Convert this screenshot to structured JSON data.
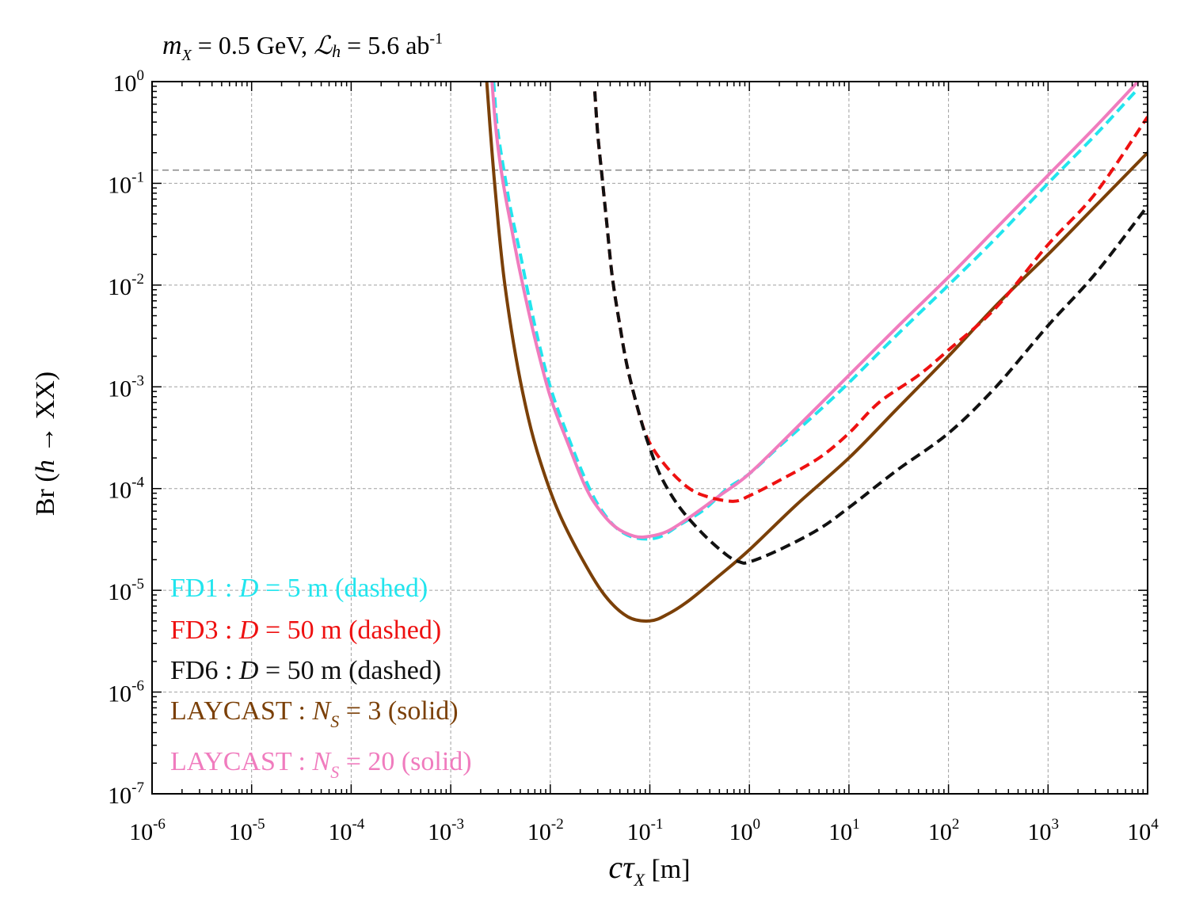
{
  "chart_data": {
    "type": "line",
    "title": {
      "mx_symbol": "m",
      "mx_sub": "X",
      "mass": " = 0.5 GeV, ",
      "lumi_symbol": "ℒ",
      "lumi_sub": "h",
      "lumi": " = 5.6 ab",
      "lumi_exp": "-1"
    },
    "xlabel": {
      "c": "c",
      "tau": "τ",
      "sub": "X",
      "unit": " [m]"
    },
    "ylabel": {
      "prefix": "Br (",
      "h": "h",
      "rest": " → XX)"
    },
    "x_scale": "log",
    "y_scale": "log",
    "xlim": [
      1e-06,
      10000.0
    ],
    "ylim": [
      1e-07,
      1
    ],
    "grid": true,
    "x_ticks": [
      {
        "base": "10",
        "exp": "-6"
      },
      {
        "base": "10",
        "exp": "-5"
      },
      {
        "base": "10",
        "exp": "-4"
      },
      {
        "base": "10",
        "exp": "-3"
      },
      {
        "base": "10",
        "exp": "-2"
      },
      {
        "base": "10",
        "exp": "-1"
      },
      {
        "base": "10",
        "exp": "0"
      },
      {
        "base": "10",
        "exp": "1"
      },
      {
        "base": "10",
        "exp": "2"
      },
      {
        "base": "10",
        "exp": "3"
      },
      {
        "base": "10",
        "exp": "4"
      }
    ],
    "y_ticks": [
      {
        "base": "10",
        "exp": "-7"
      },
      {
        "base": "10",
        "exp": "-6"
      },
      {
        "base": "10",
        "exp": "-5"
      },
      {
        "base": "10",
        "exp": "-4"
      },
      {
        "base": "10",
        "exp": "-3"
      },
      {
        "base": "10",
        "exp": "-2"
      },
      {
        "base": "10",
        "exp": "-1"
      },
      {
        "base": "10",
        "exp": "0"
      }
    ],
    "reference_line": {
      "y": 0.135,
      "color": "#888888",
      "style": "dashed"
    },
    "legend_placement": "bottom-left",
    "series": [
      {
        "name": "FD1 : D = 5 m (dashed)",
        "label_parts": [
          "FD1 : ",
          "D",
          " = 5 m (dashed)"
        ],
        "color": "#22e5ee",
        "style": "dashed",
        "points": [
          [
            0.0027,
            1
          ],
          [
            0.0029,
            0.4
          ],
          [
            0.0032,
            0.2
          ],
          [
            0.0036,
            0.1
          ],
          [
            0.004,
            0.055
          ],
          [
            0.005,
            0.02
          ],
          [
            0.007,
            0.004
          ],
          [
            0.01,
            0.001
          ],
          [
            0.015,
            0.00033
          ],
          [
            0.022,
            0.00013
          ],
          [
            0.03,
            7e-05
          ],
          [
            0.045,
            4.2e-05
          ],
          [
            0.07,
            3.3e-05
          ],
          [
            0.12,
            3.3e-05
          ],
          [
            0.2,
            4.4e-05
          ],
          [
            0.35,
            6.2e-05
          ],
          [
            0.6,
            0.0001
          ],
          [
            1,
            0.00014
          ],
          [
            2,
            0.00026
          ],
          [
            5,
            0.00058
          ],
          [
            10,
            0.0011
          ],
          [
            30,
            0.0032
          ],
          [
            100,
            0.01
          ],
          [
            300,
            0.029
          ],
          [
            1000,
            0.1
          ],
          [
            3000,
            0.3
          ],
          [
            8000,
            0.85
          ]
        ]
      },
      {
        "name": "FD3 : D = 50 m (dashed)",
        "label_parts": [
          "FD3 : ",
          "D",
          " = 50 m (dashed)"
        ],
        "color": "#ee1111",
        "style": "dashed",
        "points": [
          [
            0.028,
            0.8
          ],
          [
            0.03,
            0.3
          ],
          [
            0.033,
            0.12
          ],
          [
            0.037,
            0.04
          ],
          [
            0.042,
            0.012
          ],
          [
            0.05,
            0.004
          ],
          [
            0.06,
            0.0015
          ],
          [
            0.08,
            0.0005
          ],
          [
            0.1,
            0.00028
          ],
          [
            0.15,
            0.00016
          ],
          [
            0.25,
            0.0001
          ],
          [
            0.4,
            8.2e-05
          ],
          [
            0.7,
            7.5e-05
          ],
          [
            1,
            8.5e-05
          ],
          [
            2,
            0.00012
          ],
          [
            5,
            0.0002
          ],
          [
            10,
            0.00035
          ],
          [
            20,
            0.0007
          ],
          [
            50,
            0.0013
          ],
          [
            100,
            0.0023
          ],
          [
            300,
            0.006
          ],
          [
            1000,
            0.025
          ],
          [
            3000,
            0.08
          ],
          [
            10000,
            0.45
          ]
        ]
      },
      {
        "name": "FD6 : D = 50 m (dashed)",
        "label_parts": [
          "FD6 : ",
          "D",
          " = 50 m (dashed)"
        ],
        "color": "#111111",
        "style": "dashed",
        "points": [
          [
            0.028,
            0.8
          ],
          [
            0.03,
            0.3
          ],
          [
            0.033,
            0.12
          ],
          [
            0.037,
            0.04
          ],
          [
            0.042,
            0.012
          ],
          [
            0.05,
            0.004
          ],
          [
            0.06,
            0.0015
          ],
          [
            0.08,
            0.0005
          ],
          [
            0.1,
            0.00025
          ],
          [
            0.13,
            0.00013
          ],
          [
            0.2,
            6.5e-05
          ],
          [
            0.35,
            3.5e-05
          ],
          [
            0.6,
            2.2e-05
          ],
          [
            0.8,
            1.9e-05
          ],
          [
            1,
            1.9e-05
          ],
          [
            2,
            2.5e-05
          ],
          [
            5,
            4e-05
          ],
          [
            10,
            6.5e-05
          ],
          [
            30,
            0.00015
          ],
          [
            100,
            0.00035
          ],
          [
            300,
            0.001
          ],
          [
            1000,
            0.004
          ],
          [
            3000,
            0.013
          ],
          [
            10000,
            0.06
          ]
        ]
      },
      {
        "name": "LAYCAST : NS = 3 (solid)",
        "label_parts": [
          "LAYCAST : ",
          "N",
          "S",
          " = 3 (solid)"
        ],
        "color": "#7b4008",
        "style": "solid",
        "points": [
          [
            0.0023,
            1
          ],
          [
            0.0026,
            0.2
          ],
          [
            0.003,
            0.04
          ],
          [
            0.0035,
            0.01
          ],
          [
            0.0045,
            0.002
          ],
          [
            0.006,
            0.0005
          ],
          [
            0.008,
            0.00018
          ],
          [
            0.012,
            6e-05
          ],
          [
            0.02,
            2.2e-05
          ],
          [
            0.035,
            9e-06
          ],
          [
            0.06,
            5.5e-06
          ],
          [
            0.1,
            5e-06
          ],
          [
            0.15,
            5.8e-06
          ],
          [
            0.25,
            8e-06
          ],
          [
            0.5,
            1.4e-05
          ],
          [
            1,
            2.5e-05
          ],
          [
            3,
            7e-05
          ],
          [
            10,
            0.0002
          ],
          [
            30,
            0.0006
          ],
          [
            100,
            0.002
          ],
          [
            300,
            0.0063
          ],
          [
            1000,
            0.02
          ],
          [
            3000,
            0.06
          ],
          [
            10000,
            0.2
          ]
        ]
      },
      {
        "name": "LAYCAST : NS = 20 (solid)",
        "label_parts": [
          "LAYCAST : ",
          "N",
          "S",
          " = 20 (solid)"
        ],
        "color": "#f07cbe",
        "style": "solid",
        "points": [
          [
            0.0026,
            1
          ],
          [
            0.0028,
            0.4
          ],
          [
            0.0031,
            0.17
          ],
          [
            0.0035,
            0.08
          ],
          [
            0.004,
            0.04
          ],
          [
            0.005,
            0.013
          ],
          [
            0.007,
            0.003
          ],
          [
            0.01,
            0.0008
          ],
          [
            0.015,
            0.00028
          ],
          [
            0.022,
            0.00011
          ],
          [
            0.03,
            6.5e-05
          ],
          [
            0.045,
            4.2e-05
          ],
          [
            0.07,
            3.4e-05
          ],
          [
            0.1,
            3.4e-05
          ],
          [
            0.15,
            3.8e-05
          ],
          [
            0.25,
            5.2e-05
          ],
          [
            0.5,
            8.5e-05
          ],
          [
            1,
            0.00014
          ],
          [
            3,
            0.0004
          ],
          [
            10,
            0.0013
          ],
          [
            30,
            0.0038
          ],
          [
            100,
            0.012
          ],
          [
            300,
            0.036
          ],
          [
            1000,
            0.12
          ],
          [
            3000,
            0.36
          ],
          [
            8000,
            1
          ]
        ]
      }
    ]
  }
}
